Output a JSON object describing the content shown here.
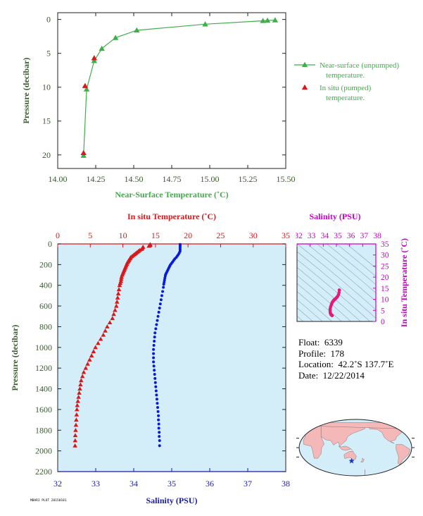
{
  "colors": {
    "near_surface": "#3fae49",
    "pumped": "#d7191c",
    "temperature": "#d7191c",
    "salinity_line": "#0a1ad6",
    "salinity_axis": "#1a1aa8",
    "salinity_ts": "#c800c8",
    "ts_points": "#e6197a",
    "axis_dark": "#3a5a2f",
    "panel_bg": "#d3eef8",
    "land": "#f4b8b8",
    "ocean": "#d3eef8",
    "float_marker": "#1432d2"
  },
  "chart_data": [
    {
      "id": "near-surface",
      "type": "line",
      "xlabel": "Near-Surface Temperature (˚C)",
      "ylabel": "Pressure (decibar)",
      "xlim": [
        14.0,
        15.5
      ],
      "ylim": [
        22,
        -1
      ],
      "x_ticks": [
        "14.00",
        "14.25",
        "14.50",
        "14.75",
        "15.00",
        "15.25",
        "15.50"
      ],
      "x_tick_values": [
        14.0,
        14.25,
        14.5,
        14.75,
        15.0,
        15.25,
        15.5
      ],
      "y_ticks": [
        "0",
        "5",
        "10",
        "15",
        "20"
      ],
      "y_tick_values": [
        0,
        5,
        10,
        15,
        20
      ],
      "series": [
        {
          "name": "Near-surface (unpumped) temperature.",
          "marker": "triangle-line",
          "points": [
            [
              15.43,
              0.1
            ],
            [
              15.38,
              0.15
            ],
            [
              15.35,
              0.2
            ],
            [
              14.97,
              0.7
            ],
            [
              14.52,
              1.6
            ],
            [
              14.38,
              2.7
            ],
            [
              14.29,
              4.3
            ],
            [
              14.24,
              6.1
            ],
            [
              14.19,
              10.3
            ],
            [
              14.17,
              20.1
            ]
          ]
        },
        {
          "name": "In situ (pumped) temperature.",
          "marker": "triangle",
          "points": [
            [
              14.24,
              5.7
            ],
            [
              14.18,
              9.8
            ],
            [
              14.17,
              19.7
            ]
          ]
        }
      ],
      "legend": [
        {
          "line1": "Near-surface (unpumped)",
          "line2": "temperature."
        },
        {
          "line1": "In situ (pumped)",
          "line2": "temperature."
        }
      ]
    },
    {
      "id": "profile",
      "type": "scatter",
      "ylabel": "Pressure (decibar)",
      "ylim": [
        2200,
        0
      ],
      "y_ticks": [
        "0",
        "200",
        "400",
        "600",
        "800",
        "1000",
        "1200",
        "1400",
        "1600",
        "1800",
        "2000",
        "2200"
      ],
      "y_tick_values": [
        0,
        200,
        400,
        600,
        800,
        1000,
        1200,
        1400,
        1600,
        1800,
        2000,
        2200
      ],
      "temperature_axis": {
        "label": "In situ Temperature (˚C)",
        "lim": [
          0,
          35
        ],
        "ticks": [
          "0",
          "5",
          "10",
          "15",
          "20",
          "25",
          "30",
          "35"
        ],
        "tick_values": [
          0,
          5,
          10,
          15,
          20,
          25,
          30,
          35
        ]
      },
      "salinity_axis": {
        "label": "Salinity (PSU)",
        "lim": [
          32,
          38
        ],
        "ticks": [
          "32",
          "33",
          "34",
          "35",
          "36",
          "37",
          "38"
        ],
        "tick_values": [
          32,
          33,
          34,
          35,
          36,
          37,
          38
        ]
      },
      "temperature_points": [
        [
          14.2,
          5
        ],
        [
          14.2,
          10
        ],
        [
          14.1,
          15
        ],
        [
          14.0,
          20
        ],
        [
          13.1,
          30
        ],
        [
          13.0,
          40
        ],
        [
          12.9,
          50
        ],
        [
          12.6,
          60
        ],
        [
          12.4,
          70
        ],
        [
          12.2,
          80
        ],
        [
          12.0,
          90
        ],
        [
          11.8,
          100
        ],
        [
          11.6,
          110
        ],
        [
          11.4,
          120
        ],
        [
          11.2,
          130
        ],
        [
          11.1,
          140
        ],
        [
          11.0,
          150
        ],
        [
          10.9,
          160
        ],
        [
          10.8,
          170
        ],
        [
          10.7,
          180
        ],
        [
          10.6,
          195
        ],
        [
          10.5,
          210
        ],
        [
          10.4,
          225
        ],
        [
          10.3,
          240
        ],
        [
          10.2,
          255
        ],
        [
          10.1,
          270
        ],
        [
          10.0,
          285
        ],
        [
          9.9,
          300
        ],
        [
          9.8,
          320
        ],
        [
          9.75,
          340
        ],
        [
          9.7,
          360
        ],
        [
          9.6,
          380
        ],
        [
          9.5,
          400
        ],
        [
          9.4,
          440
        ],
        [
          9.3,
          480
        ],
        [
          9.2,
          520
        ],
        [
          9.1,
          560
        ],
        [
          9.0,
          600
        ],
        [
          8.8,
          640
        ],
        [
          8.6,
          680
        ],
        [
          8.4,
          720
        ],
        [
          8.0,
          760
        ],
        [
          7.6,
          800
        ],
        [
          7.3,
          840
        ],
        [
          7.0,
          880
        ],
        [
          6.6,
          920
        ],
        [
          6.2,
          960
        ],
        [
          5.8,
          1000
        ],
        [
          5.5,
          1040
        ],
        [
          5.2,
          1080
        ],
        [
          4.9,
          1120
        ],
        [
          4.6,
          1160
        ],
        [
          4.3,
          1200
        ],
        [
          4.0,
          1240
        ],
        [
          3.8,
          1280
        ],
        [
          3.6,
          1320
        ],
        [
          3.5,
          1360
        ],
        [
          3.4,
          1400
        ],
        [
          3.3,
          1440
        ],
        [
          3.2,
          1480
        ],
        [
          3.1,
          1520
        ],
        [
          3.0,
          1560
        ],
        [
          2.95,
          1600
        ],
        [
          2.9,
          1650
        ],
        [
          2.85,
          1700
        ],
        [
          2.8,
          1750
        ],
        [
          2.75,
          1800
        ],
        [
          2.7,
          1850
        ],
        [
          2.68,
          1900
        ],
        [
          2.66,
          1950
        ]
      ],
      "salinity_points": [
        [
          35.22,
          5
        ],
        [
          35.22,
          15
        ],
        [
          35.22,
          25
        ],
        [
          35.22,
          40
        ],
        [
          35.22,
          55
        ],
        [
          35.22,
          70
        ],
        [
          35.2,
          85
        ],
        [
          35.18,
          100
        ],
        [
          35.15,
          115
        ],
        [
          35.12,
          130
        ],
        [
          35.08,
          145
        ],
        [
          35.05,
          160
        ],
        [
          35.02,
          175
        ],
        [
          34.99,
          190
        ],
        [
          34.96,
          205
        ],
        [
          34.94,
          220
        ],
        [
          34.92,
          235
        ],
        [
          34.9,
          250
        ],
        [
          34.88,
          265
        ],
        [
          34.86,
          280
        ],
        [
          34.84,
          295
        ],
        [
          34.83,
          310
        ],
        [
          34.82,
          330
        ],
        [
          34.81,
          350
        ],
        [
          34.8,
          370
        ],
        [
          34.79,
          390
        ],
        [
          34.78,
          420
        ],
        [
          34.76,
          460
        ],
        [
          34.74,
          500
        ],
        [
          34.72,
          540
        ],
        [
          34.7,
          580
        ],
        [
          34.68,
          620
        ],
        [
          34.66,
          660
        ],
        [
          34.64,
          700
        ],
        [
          34.62,
          740
        ],
        [
          34.6,
          780
        ],
        [
          34.58,
          820
        ],
        [
          34.56,
          860
        ],
        [
          34.55,
          900
        ],
        [
          34.54,
          940
        ],
        [
          34.53,
          980
        ],
        [
          34.52,
          1020
        ],
        [
          34.52,
          1060
        ],
        [
          34.52,
          1100
        ],
        [
          34.52,
          1140
        ],
        [
          34.53,
          1180
        ],
        [
          34.54,
          1220
        ],
        [
          34.55,
          1260
        ],
        [
          34.56,
          1300
        ],
        [
          34.57,
          1340
        ],
        [
          34.58,
          1380
        ],
        [
          34.59,
          1420
        ],
        [
          34.6,
          1460
        ],
        [
          34.61,
          1500
        ],
        [
          34.62,
          1540
        ],
        [
          34.63,
          1580
        ],
        [
          34.64,
          1620
        ],
        [
          34.65,
          1660
        ],
        [
          34.65,
          1700
        ],
        [
          34.66,
          1740
        ],
        [
          34.66,
          1780
        ],
        [
          34.67,
          1820
        ],
        [
          34.67,
          1860
        ],
        [
          34.68,
          1900
        ],
        [
          34.68,
          1950
        ]
      ]
    },
    {
      "id": "ts-diagram",
      "type": "scatter",
      "xlabel": "Salinity (PSU)",
      "ylabel": "In situ Temperature (˚C)",
      "xlim": [
        32,
        38
      ],
      "ylim": [
        0,
        35
      ],
      "x_ticks": [
        "32",
        "33",
        "34",
        "35",
        "36",
        "37",
        "38"
      ],
      "x_tick_values": [
        32,
        33,
        34,
        35,
        36,
        37,
        38
      ],
      "y_ticks": [
        "0",
        "5",
        "10",
        "15",
        "20",
        "25",
        "30",
        "35"
      ],
      "y_tick_values": [
        0,
        5,
        10,
        15,
        20,
        25,
        30,
        35
      ],
      "points": [
        [
          35.22,
          14.2
        ],
        [
          35.22,
          14.0
        ],
        [
          35.2,
          13.0
        ],
        [
          35.15,
          12.0
        ],
        [
          35.1,
          11.4
        ],
        [
          35.05,
          11.0
        ],
        [
          35.0,
          10.7
        ],
        [
          34.95,
          10.4
        ],
        [
          34.9,
          10.1
        ],
        [
          34.86,
          9.9
        ],
        [
          34.83,
          9.75
        ],
        [
          34.8,
          9.6
        ],
        [
          34.77,
          9.3
        ],
        [
          34.73,
          9.0
        ],
        [
          34.68,
          8.6
        ],
        [
          34.64,
          8.0
        ],
        [
          34.6,
          7.3
        ],
        [
          34.56,
          6.6
        ],
        [
          34.53,
          5.8
        ],
        [
          34.52,
          5.2
        ],
        [
          34.52,
          4.6
        ],
        [
          34.53,
          4.0
        ],
        [
          34.55,
          3.6
        ],
        [
          34.57,
          3.3
        ],
        [
          34.6,
          3.0
        ],
        [
          34.63,
          2.9
        ],
        [
          34.65,
          2.8
        ],
        [
          34.67,
          2.7
        ],
        [
          34.68,
          2.66
        ]
      ]
    }
  ],
  "float_info": {
    "float": {
      "label": "Float:",
      "value": "6339"
    },
    "profile": {
      "label": "Profile:",
      "value": "178"
    },
    "location": {
      "label": "Location:",
      "value": "42.2˚S  137.7˚E"
    },
    "date": {
      "label": "Date:",
      "value": "12/22/2014"
    }
  },
  "map": {
    "float_lat": -42.2,
    "float_lon": 137.7
  },
  "stamp": "MBARI PLOT 20150101"
}
